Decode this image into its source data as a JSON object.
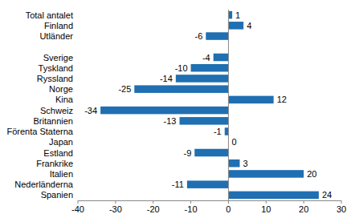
{
  "chart_data": {
    "type": "bar",
    "orientation": "horizontal",
    "categories": [
      "Total antalet",
      "Finland",
      "Utländer",
      null,
      "Sverige",
      "Tyskland",
      "Ryssland",
      "Norge",
      "Kina",
      "Schweiz",
      "Britannien",
      "Förenta Staterna",
      "Japan",
      "Estland",
      "Frankrike",
      "Italien",
      "Nederländerna",
      "Spanien"
    ],
    "values": [
      1,
      4,
      -6,
      null,
      -4,
      -10,
      -14,
      -25,
      12,
      -34,
      -13,
      -1,
      0,
      -9,
      3,
      20,
      -11,
      24
    ],
    "color": "#1f6fb2",
    "xlim": [
      -40,
      30
    ],
    "xticks": [
      -40,
      -30,
      -20,
      -10,
      0,
      10,
      20,
      30
    ],
    "grid": false,
    "data_labels": true
  }
}
